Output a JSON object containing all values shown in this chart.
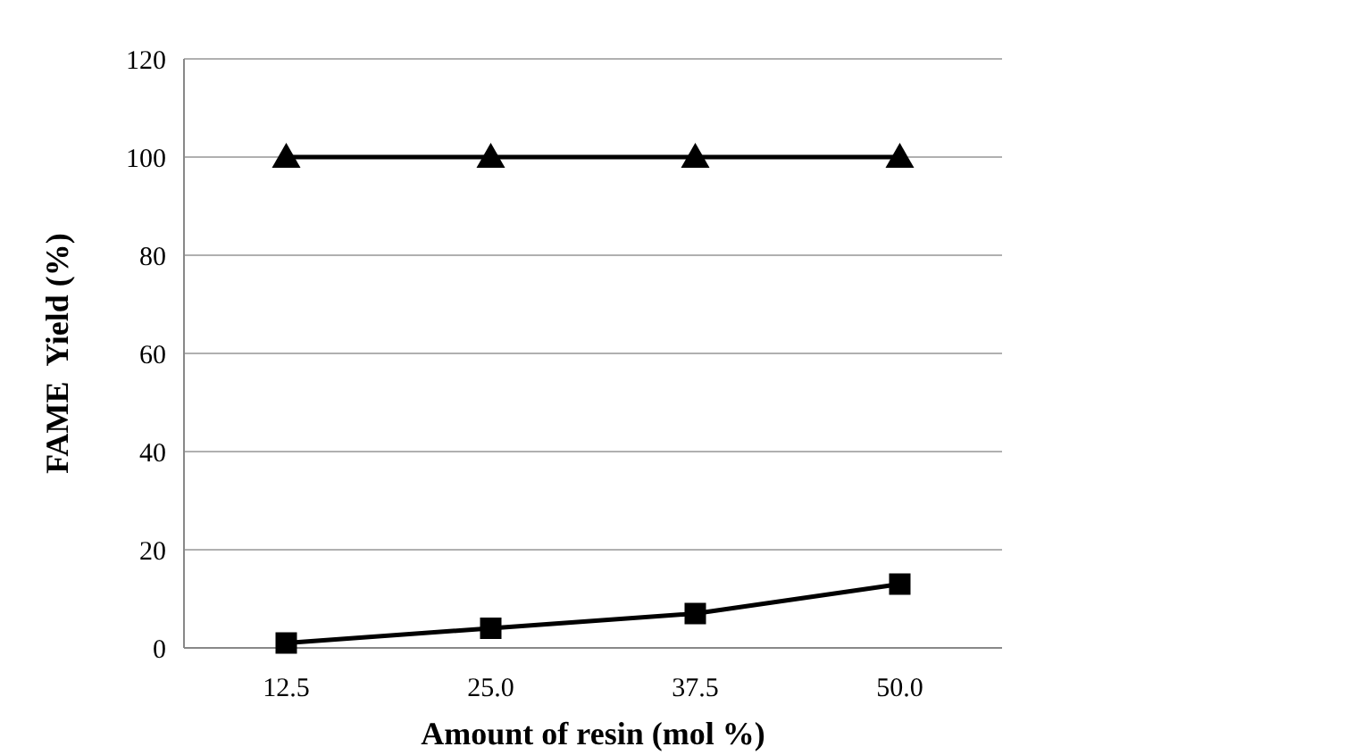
{
  "chart_data": {
    "type": "line",
    "xlabel": "Amount of resin (mol %)",
    "ylabel": "FAME  Yield (%)",
    "categories": [
      "12.5",
      "25.0",
      "37.5",
      "50.0"
    ],
    "series": [
      {
        "color": "#000000",
        "marker": "square",
        "values": [
          1,
          4,
          7,
          13
        ]
      },
      {
        "color": "#000000",
        "marker": "triangle",
        "values": [
          100,
          100,
          100,
          100
        ]
      }
    ],
    "ylim": [
      0,
      120
    ],
    "yticks": [
      0,
      20,
      40,
      60,
      80,
      100,
      120
    ],
    "grid": "y",
    "line_style": "solid"
  }
}
